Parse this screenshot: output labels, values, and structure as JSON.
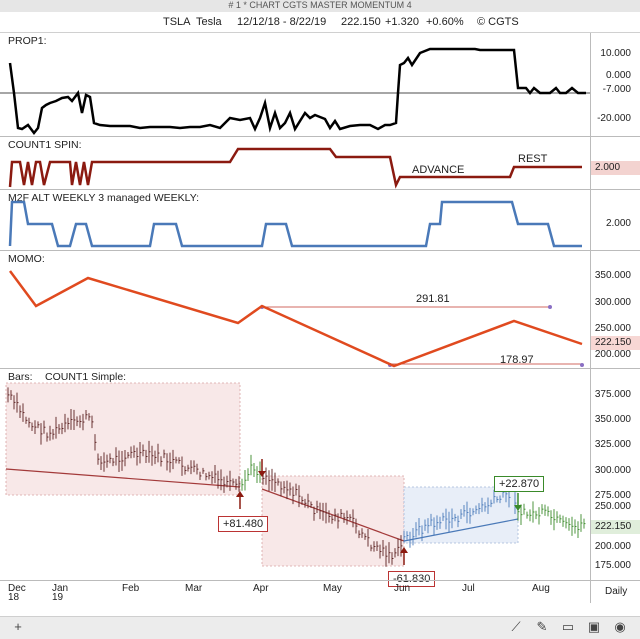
{
  "window": {
    "title": "# 1 * CHART CGTS MASTER MOMENTUM 4"
  },
  "header": {
    "symbol": "TSLA",
    "name": "Tesla",
    "date_range": "12/12/18 - 8/22/19",
    "price": "222.150",
    "change": "+1.320",
    "change_pct": "+0.60%",
    "copyright": "© CGTS"
  },
  "panels": {
    "prop1": {
      "label": "PROP1:",
      "ticks": [
        "10.000",
        "0.000",
        "-7.000",
        "-20.000"
      ],
      "current": "-7.000"
    },
    "count1_spin": {
      "label": "COUNT1 SPIN:",
      "annotations": [
        "ADVANCE",
        "REST"
      ],
      "current": "2.000"
    },
    "m2f": {
      "label": "M2F ALT WEEKLY 3 managed WEEKLY:",
      "ticks": [
        "2.000"
      ]
    },
    "momo": {
      "label": "MOMO:",
      "ticks": [
        "350.000",
        "300.000",
        "250.000",
        "200.000"
      ],
      "current": "222.150",
      "annotations": [
        "291.81",
        "178.97"
      ]
    },
    "bars": {
      "label": "Bars:",
      "sublabel": "COUNT1 Simple:",
      "ticks": [
        "375.000",
        "350.000",
        "325.000",
        "300.000",
        "275.000",
        "250.000",
        "200.000",
        "175.000"
      ],
      "current": "222.150",
      "annotations": [
        "+81.480",
        "+22.870",
        "-61.830"
      ]
    }
  },
  "xaxis": {
    "labels": [
      "Dec",
      "Jan",
      "Feb",
      "Mar",
      "Apr",
      "May",
      "Jun",
      "Jul",
      "Aug"
    ],
    "years": [
      "18",
      "19"
    ],
    "period": "Daily"
  },
  "colors": {
    "red": "#c0392b",
    "darkred": "#8b1a10",
    "blue": "#4a79b8",
    "green": "#3a8a2a"
  },
  "toolbar": {
    "icons": [
      "plus-icon",
      "trend-icon",
      "draw-icon",
      "panel-icon",
      "window-icon",
      "camera-icon"
    ]
  }
}
